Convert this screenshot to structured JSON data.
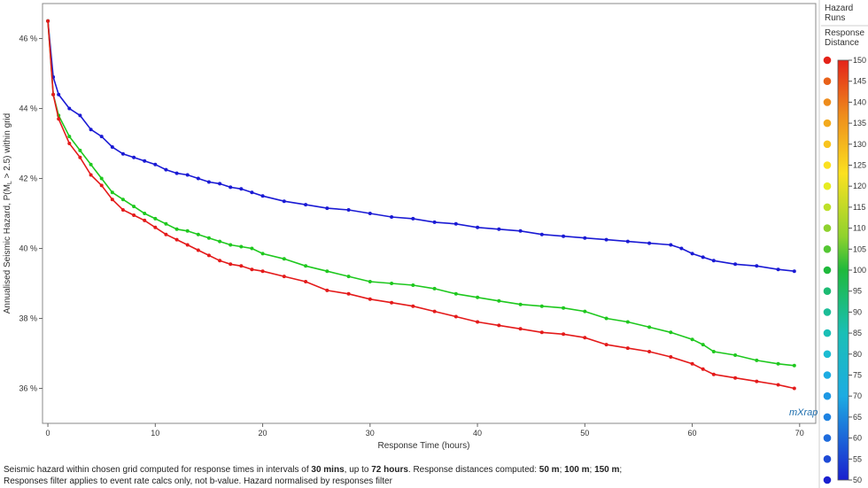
{
  "chart_data": {
    "type": "line",
    "title": "",
    "xlabel": "Response Time (hours)",
    "ylabel": "Annualised Seismic Hazard, P(ML > 2.5) within grid",
    "ylabel_parts": {
      "pre": "Annualised Seismic Hazard, P(M",
      "sub": "L",
      "post": " > 2.5) within grid"
    },
    "xlim": [
      -0.5,
      71.5
    ],
    "ylim": [
      35.0,
      47.0
    ],
    "x_ticks": [
      0,
      10,
      20,
      30,
      40,
      50,
      60,
      70
    ],
    "y_ticks": [
      36,
      38,
      40,
      42,
      44,
      46
    ],
    "y_tick_suffix": " %",
    "grid": true,
    "series": [
      {
        "name": "50",
        "color": "#1a1ad4",
        "x": [
          0,
          0.5,
          1,
          2,
          3,
          4,
          5,
          6,
          7,
          8,
          9,
          10,
          11,
          12,
          13,
          14,
          15,
          16,
          17,
          18,
          19,
          20,
          22,
          24,
          26,
          28,
          30,
          32,
          34,
          36,
          38,
          40,
          42,
          44,
          46,
          48,
          50,
          52,
          54,
          56,
          58,
          59,
          60,
          61,
          62,
          64,
          66,
          68,
          69.5
        ],
        "y": [
          46.5,
          44.9,
          44.4,
          44.0,
          43.8,
          43.4,
          43.2,
          42.9,
          42.7,
          42.6,
          42.5,
          42.4,
          42.25,
          42.15,
          42.1,
          42.0,
          41.9,
          41.85,
          41.75,
          41.7,
          41.6,
          41.5,
          41.35,
          41.25,
          41.15,
          41.1,
          41.0,
          40.9,
          40.85,
          40.75,
          40.7,
          40.6,
          40.55,
          40.5,
          40.4,
          40.35,
          40.3,
          40.25,
          40.2,
          40.15,
          40.1,
          40.0,
          39.85,
          39.75,
          39.65,
          39.55,
          39.5,
          39.4,
          39.35
        ]
      },
      {
        "name": "100",
        "color": "#1ec81e",
        "x": [
          0,
          0.5,
          1,
          2,
          3,
          4,
          5,
          6,
          7,
          8,
          9,
          10,
          11,
          12,
          13,
          14,
          15,
          16,
          17,
          18,
          19,
          20,
          22,
          24,
          26,
          28,
          30,
          32,
          34,
          36,
          38,
          40,
          42,
          44,
          46,
          48,
          50,
          52,
          54,
          56,
          58,
          60,
          61,
          62,
          64,
          66,
          68,
          69.5
        ],
        "y": [
          46.5,
          44.4,
          43.8,
          43.2,
          42.8,
          42.4,
          42.0,
          41.6,
          41.4,
          41.2,
          41.0,
          40.85,
          40.7,
          40.55,
          40.5,
          40.4,
          40.3,
          40.2,
          40.1,
          40.05,
          40.0,
          39.85,
          39.7,
          39.5,
          39.35,
          39.2,
          39.05,
          39.0,
          38.95,
          38.85,
          38.7,
          38.6,
          38.5,
          38.4,
          38.35,
          38.3,
          38.2,
          38.0,
          37.9,
          37.75,
          37.6,
          37.4,
          37.25,
          37.05,
          36.95,
          36.8,
          36.7,
          36.65
        ]
      },
      {
        "name": "150",
        "color": "#e41a1a",
        "x": [
          0,
          0.5,
          1,
          2,
          3,
          4,
          5,
          6,
          7,
          8,
          9,
          10,
          11,
          12,
          13,
          14,
          15,
          16,
          17,
          18,
          19,
          20,
          22,
          24,
          26,
          28,
          30,
          32,
          34,
          36,
          38,
          40,
          42,
          44,
          46,
          48,
          50,
          52,
          54,
          56,
          58,
          60,
          61,
          62,
          64,
          66,
          68,
          69.5
        ],
        "y": [
          46.5,
          44.4,
          43.7,
          43.0,
          42.6,
          42.1,
          41.8,
          41.4,
          41.1,
          40.95,
          40.8,
          40.6,
          40.4,
          40.25,
          40.1,
          39.95,
          39.8,
          39.65,
          39.55,
          39.5,
          39.4,
          39.35,
          39.2,
          39.05,
          38.8,
          38.7,
          38.55,
          38.45,
          38.35,
          38.2,
          38.05,
          37.9,
          37.8,
          37.7,
          37.6,
          37.55,
          37.45,
          37.25,
          37.15,
          37.05,
          36.9,
          36.7,
          36.55,
          36.4,
          36.3,
          36.2,
          36.1,
          36.0
        ]
      }
    ],
    "legend": {
      "position": "right",
      "title_lines": [
        "Hazard",
        "Runs"
      ],
      "subtitle_lines": [
        "Response",
        "Distance"
      ],
      "entries": [
        {
          "label": "150",
          "color": "#e42319"
        },
        {
          "label": "145",
          "color": "#e8611a"
        },
        {
          "label": "140",
          "color": "#ee8c1c"
        },
        {
          "label": "135",
          "color": "#f3aa1e"
        },
        {
          "label": "130",
          "color": "#f8c41f"
        },
        {
          "label": "125",
          "color": "#fbe120"
        },
        {
          "label": "120",
          "color": "#e6ec22"
        },
        {
          "label": "115",
          "color": "#bde02a"
        },
        {
          "label": "110",
          "color": "#8fd22e"
        },
        {
          "label": "105",
          "color": "#54c733"
        },
        {
          "label": "100",
          "color": "#1fb93c"
        },
        {
          "label": "95",
          "color": "#1dbb73"
        },
        {
          "label": "90",
          "color": "#1cbd97"
        },
        {
          "label": "85",
          "color": "#1bbfb6"
        },
        {
          "label": "80",
          "color": "#1cbcd2"
        },
        {
          "label": "75",
          "color": "#1dace2"
        },
        {
          "label": "70",
          "color": "#1e98e4"
        },
        {
          "label": "65",
          "color": "#1f83e2"
        },
        {
          "label": "60",
          "color": "#1f6cdd"
        },
        {
          "label": "55",
          "color": "#1e4ad6"
        },
        {
          "label": "50",
          "color": "#1a20cf"
        }
      ]
    }
  },
  "watermark": "mXrap",
  "caption": {
    "line1": [
      {
        "t": "Seismic hazard within chosen grid computed for response times in intervals of ",
        "b": false
      },
      {
        "t": "30 mins",
        "b": true
      },
      {
        "t": ", up to ",
        "b": false
      },
      {
        "t": "72 hours",
        "b": true
      },
      {
        "t": ". Response distances computed: ",
        "b": false
      },
      {
        "t": "50 m",
        "b": true
      },
      {
        "t": "; ",
        "b": false
      },
      {
        "t": "100 m",
        "b": true
      },
      {
        "t": "; ",
        "b": false
      },
      {
        "t": "150 m",
        "b": true
      },
      {
        "t": ";",
        "b": false
      }
    ],
    "line2": "Responses filter applies to event rate calcs only, not b-value. Hazard normalised by responses filter"
  }
}
